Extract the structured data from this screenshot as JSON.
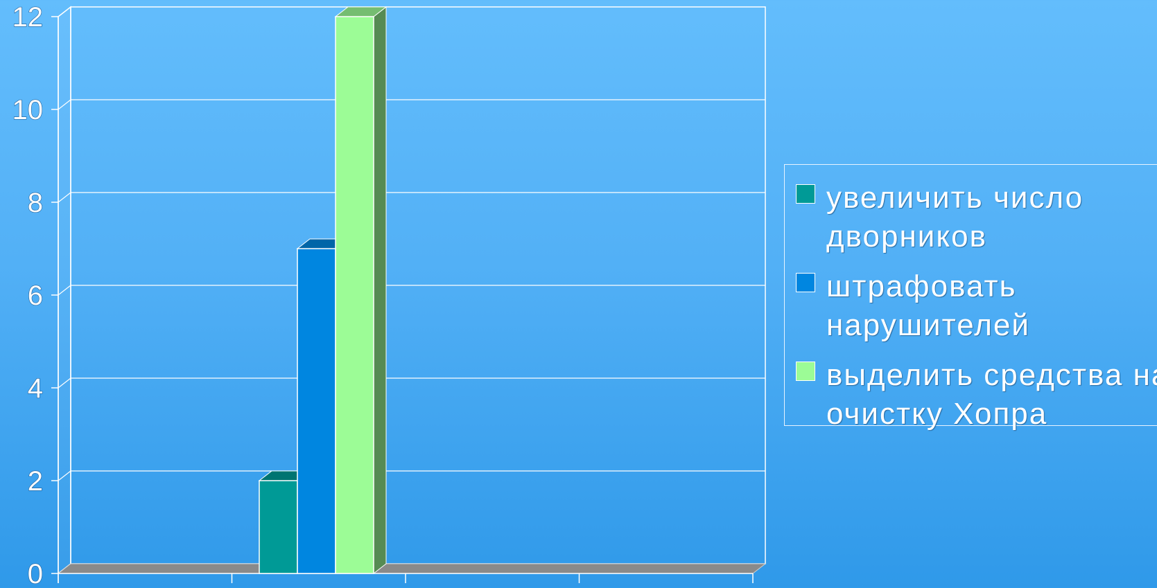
{
  "chart_data": {
    "type": "bar",
    "categories": [
      ""
    ],
    "series": [
      {
        "name": "увеличить число дворников",
        "values": [
          2
        ],
        "color": "#009a96"
      },
      {
        "name": "штрафовать нарушителей",
        "values": [
          7
        ],
        "color": "#0086e0"
      },
      {
        "name": "выделить средства на очистку Хопра",
        "values": [
          12
        ],
        "color": "#9cfc96"
      }
    ],
    "ylim": [
      0,
      12
    ],
    "yticks": [
      "0",
      "2",
      "4",
      "6",
      "8",
      "10",
      "12"
    ],
    "title": "",
    "xlabel": "",
    "ylabel": "",
    "grid": true,
    "legend_position": "right",
    "colors": {
      "grid": "#ffffff",
      "floor": "#8a8a8a"
    }
  }
}
